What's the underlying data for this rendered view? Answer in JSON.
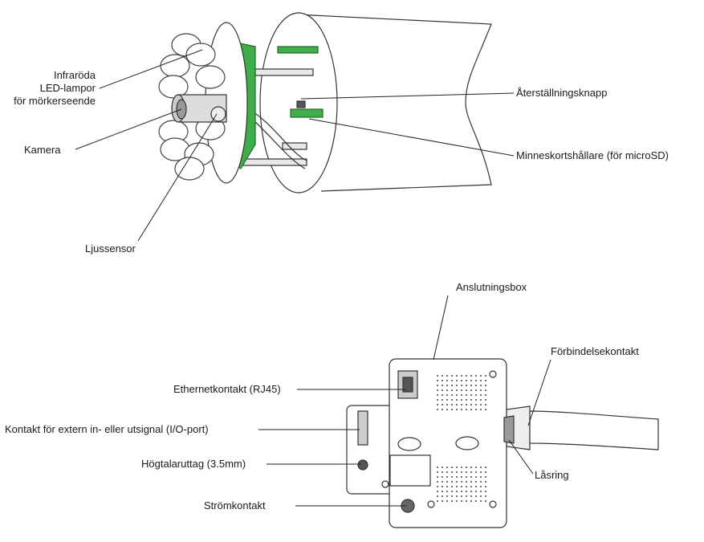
{
  "labels": {
    "ir_led": [
      "Infraröda",
      "LED-lampor",
      "för mörkerseende"
    ],
    "camera": "Kamera",
    "light_sensor": "Ljussensor",
    "reset_button": "Återställningsknapp",
    "memory_card_holder": "Minneskortshållare (för microSD)",
    "connection_box": "Anslutningsbox",
    "ethernet": "Ethernetkontakt (RJ45)",
    "io_port": "Kontakt för extern in- eller utsignal (I/O-port)",
    "speaker_jack": "Högtalaruttag (3.5mm)",
    "power": "Strömkontakt",
    "connector": "Förbindelsekontakt",
    "lock_ring": "Låsring"
  }
}
